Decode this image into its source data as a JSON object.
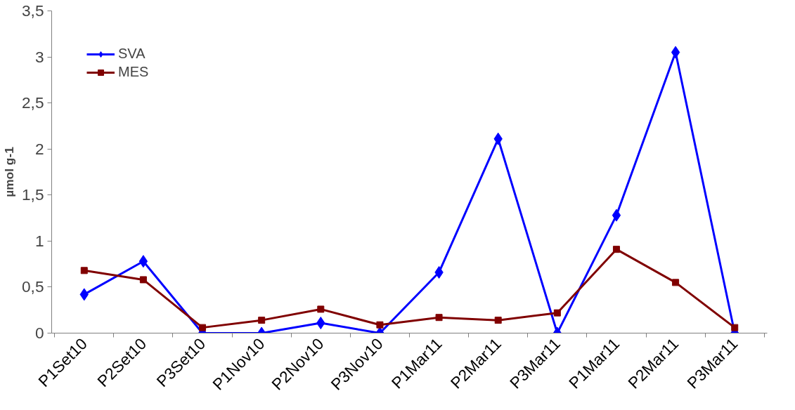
{
  "chart_data": {
    "type": "line",
    "ylabel": "µmol g-1",
    "categories": [
      "P1Set10",
      "P2Set10",
      "P3Set10",
      "P1Nov10",
      "P2Nov10",
      "P3Nov10",
      "P1Mar11",
      "P2Mar11",
      "P3Mar11",
      "P1Mar11",
      "P2Mar11",
      "P3Mar11"
    ],
    "series": [
      {
        "name": "SVA",
        "color": "#0000ff",
        "marker": "diamond",
        "values": [
          0.42,
          0.78,
          0,
          0,
          0.11,
          0,
          0.66,
          2.11,
          0,
          1.28,
          3.05,
          0
        ]
      },
      {
        "name": "MES",
        "color": "#800000",
        "marker": "square",
        "values": [
          0.68,
          0.58,
          0.06,
          0.14,
          0.26,
          0.09,
          0.17,
          0.14,
          0.22,
          0.91,
          0.55,
          0.06
        ]
      }
    ],
    "ylim": [
      0,
      3.5
    ],
    "yticks": [
      0,
      {
        "value": 0.5,
        "label": "0,5"
      },
      1,
      {
        "value": 1.5,
        "label": "1,5"
      },
      2,
      {
        "value": 2.5,
        "label": "2,5"
      },
      3,
      {
        "value": 3.5,
        "label": "3,5"
      }
    ],
    "grid": false,
    "legend": "top left",
    "line_style": "solid"
  }
}
